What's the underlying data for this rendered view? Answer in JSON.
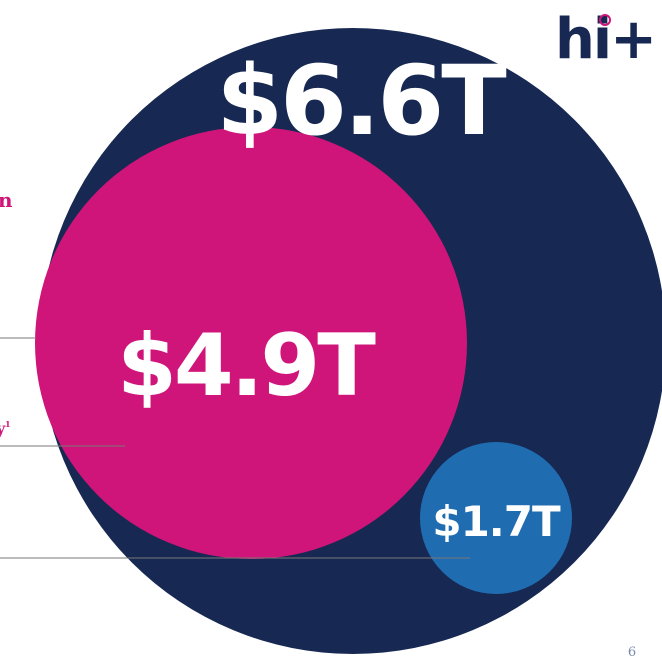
{
  "logo": "hi+",
  "circles": {
    "total": "$6.6T",
    "segment_a": "$4.9T",
    "segment_b": "$1.7T"
  },
  "side_labels": {
    "first": "n",
    "second": "y",
    "second_note": "1"
  },
  "page_number": "6"
}
